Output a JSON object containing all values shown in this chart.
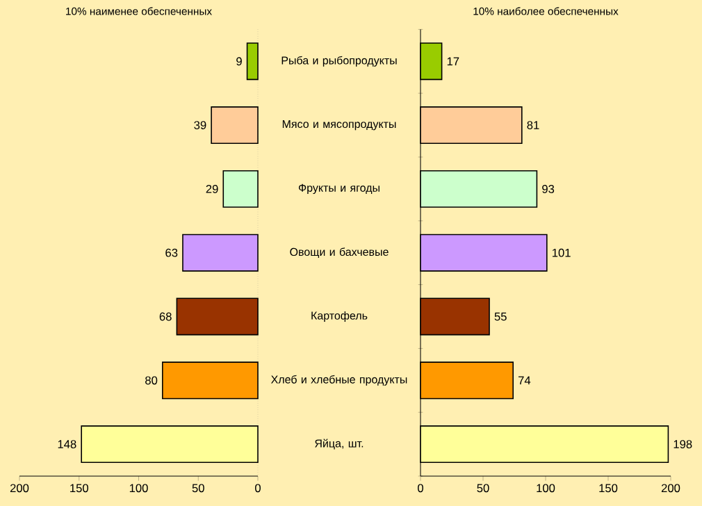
{
  "chart_data": [
    {
      "type": "bar",
      "orientation": "horizontal",
      "title": "10% наименее обеспеченных",
      "categories": [
        "Рыба и рыбопродукты",
        "Мясо и мясопродукты",
        "Фрукты и ягоды",
        "Овощи и бахчевые",
        "Картофель",
        "Хлеб и хлебные продукты",
        "Яйца, шт."
      ],
      "values": [
        9,
        39,
        29,
        63,
        68,
        80,
        148
      ],
      "colors": [
        "#99cc00",
        "#ffcc99",
        "#ccffcc",
        "#cc99ff",
        "#993300",
        "#ff9900",
        "#ffff99"
      ],
      "xlim": [
        200,
        0
      ],
      "xticks": [
        0,
        50,
        100,
        150,
        200
      ],
      "data_labels": true,
      "tick_labels": "x"
    },
    {
      "type": "bar",
      "orientation": "horizontal",
      "title": "10% наиболее обеспеченных",
      "categories": [
        null,
        null,
        null,
        null,
        null,
        null,
        null
      ],
      "values": [
        17,
        81,
        93,
        101,
        55,
        74,
        198
      ],
      "tick_labels": "x",
      "colors": [
        "#99cc00",
        "#ffcc99",
        "#ccffcc",
        "#cc99ff",
        "#993300",
        "#ff9900",
        "#ffff99"
      ],
      "xlim": [
        0,
        200
      ],
      "xticks": [
        0,
        50,
        100,
        150,
        200
      ],
      "data_labels": true
    }
  ]
}
